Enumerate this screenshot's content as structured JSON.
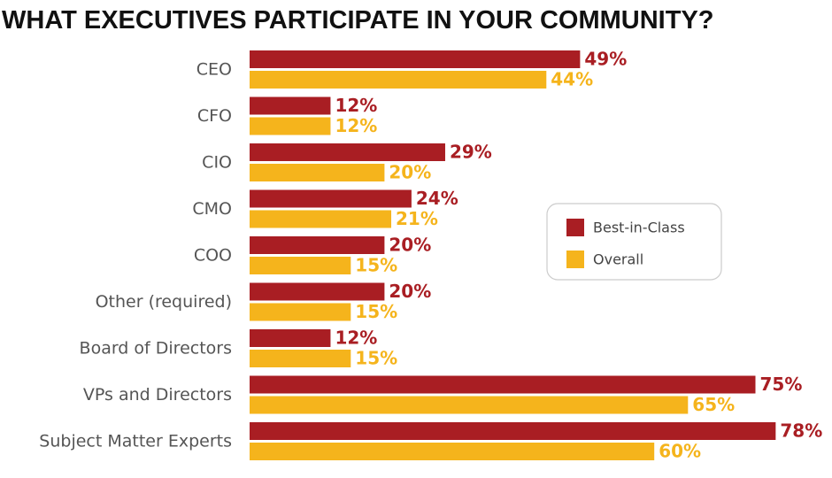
{
  "chart_data": {
    "type": "bar",
    "orientation": "horizontal",
    "title": "WHAT EXECUTIVES PARTICIPATE IN YOUR COMMUNITY?",
    "categories": [
      "CEO",
      "CFO",
      "CIO",
      "CMO",
      "COO",
      "Other (required)",
      "Board of Directors",
      "VPs and Directors",
      "Subject Matter Experts"
    ],
    "series": [
      {
        "name": "Best-in-Class",
        "color": "#a91e23",
        "values": [
          49,
          12,
          29,
          24,
          20,
          20,
          12,
          75,
          78
        ],
        "value_labels": [
          "49%",
          "12%",
          "29%",
          "24%",
          "20%",
          "20%",
          "12%",
          "75%",
          "78%"
        ]
      },
      {
        "name": "Overall",
        "color": "#f5b41c",
        "values": [
          44,
          12,
          20,
          21,
          15,
          15,
          15,
          65,
          60
        ],
        "value_labels": [
          "44%",
          "12%",
          "20%",
          "21%",
          "15%",
          "15%",
          "15%",
          "65%",
          "60%"
        ]
      }
    ],
    "legend": "right"
  }
}
